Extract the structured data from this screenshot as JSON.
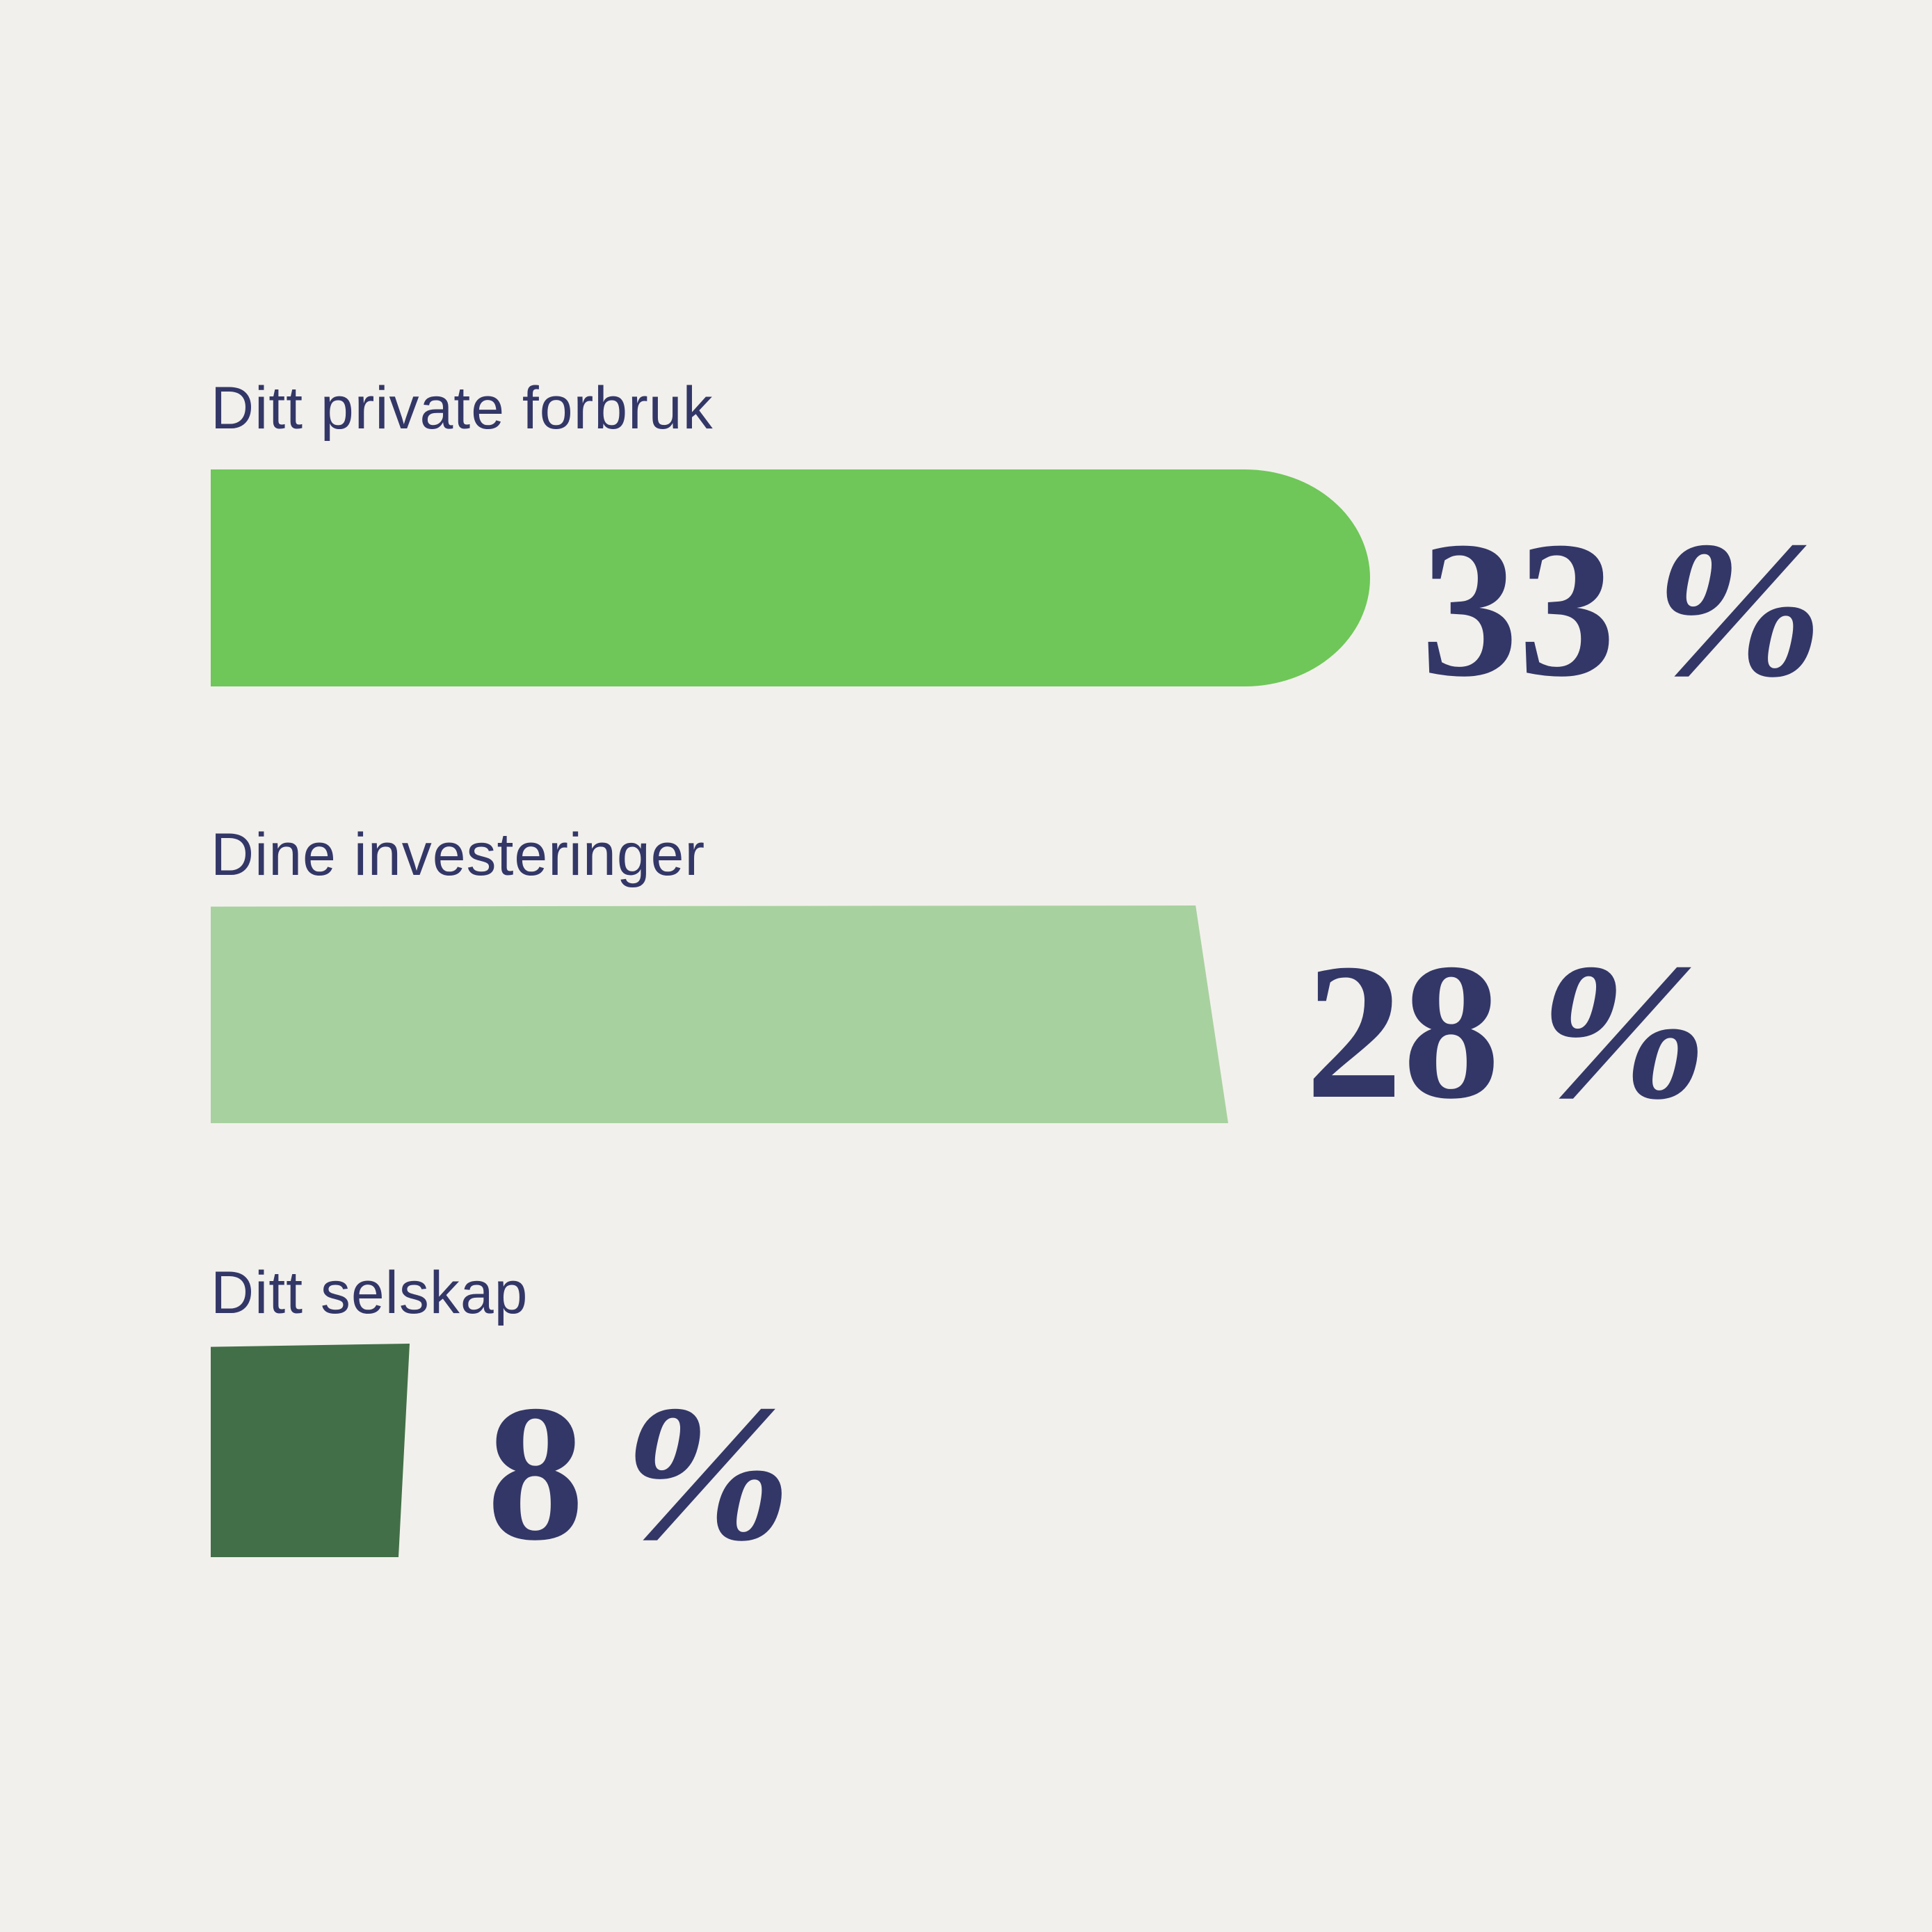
{
  "background_color": "#f2f0ec",
  "text_color": "#333767",
  "chart_data": {
    "type": "bar",
    "orientation": "horizontal",
    "title": "",
    "xlabel": "",
    "ylabel": "",
    "categories": [
      "Ditt private forbruk",
      "Dine investeringer",
      "Ditt selskap"
    ],
    "values": [
      33,
      28,
      8
    ],
    "unit": "%",
    "series_colors": [
      "#6ec758",
      "#a8d1a0",
      "#426f47"
    ],
    "value_labels": [
      "33 %",
      "28 %",
      "8 %"
    ],
    "legend": "none",
    "grid": false,
    "axes_visible": false,
    "bar_style_notes": [
      "first bar rounded right cap",
      "second bar slanted right edge widening downward",
      "third bar slanted right edge narrowing downward"
    ]
  },
  "rows": [
    {
      "label": "Ditt private forbruk",
      "value_num": "33",
      "percent_sign": "%"
    },
    {
      "label": "Dine investeringer",
      "value_num": "28",
      "percent_sign": "%"
    },
    {
      "label": "Ditt selskap",
      "value_num": "8",
      "percent_sign": "%"
    }
  ]
}
